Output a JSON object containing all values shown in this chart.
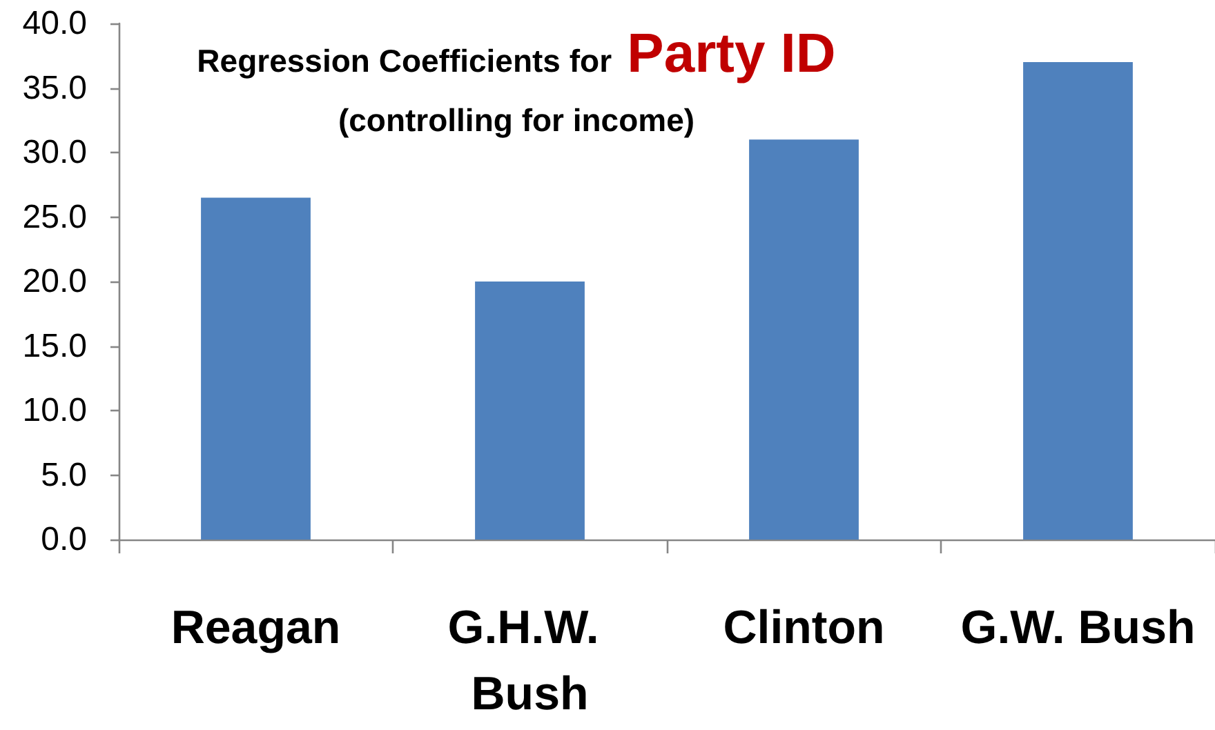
{
  "chart_data": {
    "type": "bar",
    "title": "Regression Coefficients for Party ID",
    "subtitle": "(controlling for income)",
    "categories": [
      "Reagan",
      "G.H.W. Bush",
      "Clinton",
      "G.W. Bush"
    ],
    "values": [
      26.5,
      20.0,
      31.0,
      37.0
    ],
    "color": "#4f81bd",
    "ylim": [
      0,
      40
    ],
    "yticks": [
      {
        "value": 0,
        "label": "0.0"
      },
      {
        "value": 5,
        "label": "5.0"
      },
      {
        "value": 10,
        "label": "10.0"
      },
      {
        "value": 15,
        "label": "15.0"
      },
      {
        "value": 20,
        "label": "20.0"
      },
      {
        "value": 25,
        "label": "25.0"
      },
      {
        "value": 30,
        "label": "30.0"
      },
      {
        "value": 35,
        "label": "35.0"
      },
      {
        "value": 40,
        "label": "40.0"
      }
    ]
  }
}
